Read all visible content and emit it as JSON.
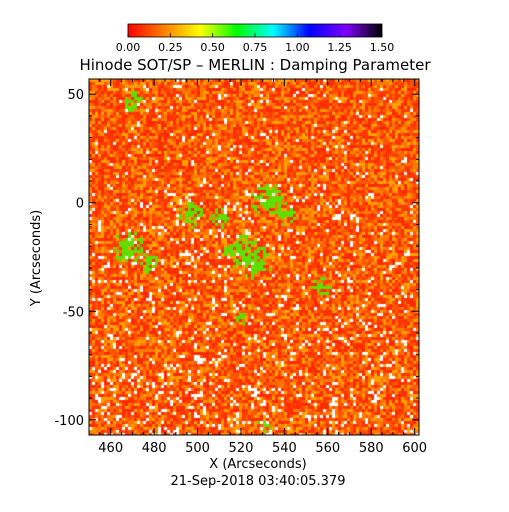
{
  "chart_data": {
    "type": "heatmap",
    "title": "Hinode SOT/SP – MERLIN : Damping Parameter",
    "xlabel": "X (Arcseconds)",
    "ylabel": "Y (Arcseconds)",
    "subtitle": "21-Sep-2018 03:40:05.379",
    "xlim": [
      450,
      602
    ],
    "ylim": [
      -107,
      57
    ],
    "x_ticks": [
      460,
      480,
      500,
      520,
      540,
      560,
      580,
      600
    ],
    "y_ticks": [
      -100,
      -50,
      0,
      50
    ],
    "colorbar": {
      "range": [
        0.0,
        1.5
      ],
      "ticks": [
        "0.00",
        "0.25",
        "0.50",
        "0.75",
        "1.00",
        "1.25",
        "1.50"
      ],
      "colors": [
        "#ff0000",
        "#ff8000",
        "#ffff00",
        "#00ff00",
        "#00ffff",
        "#0000ff",
        "#8000ff",
        "#000000"
      ]
    },
    "field": {
      "base_colors": [
        "#ff2a00",
        "#ff5500",
        "#ff7a00",
        "#ffa000",
        "#ff3800"
      ],
      "low_color": "#ffffff",
      "high_color": "#5de000",
      "high_regions": [
        {
          "x": 470,
          "y": 47,
          "r": 3
        },
        {
          "x": 468,
          "y": -20,
          "r": 5
        },
        {
          "x": 478,
          "y": -28,
          "r": 3
        },
        {
          "x": 496,
          "y": -5,
          "r": 4
        },
        {
          "x": 510,
          "y": -6,
          "r": 3
        },
        {
          "x": 520,
          "y": -22,
          "r": 5
        },
        {
          "x": 526,
          "y": -27,
          "r": 5
        },
        {
          "x": 532,
          "y": 2,
          "r": 5
        },
        {
          "x": 540,
          "y": -5,
          "r": 3
        },
        {
          "x": 556,
          "y": -38,
          "r": 3
        },
        {
          "x": 520,
          "y": -53,
          "r": 2
        },
        {
          "x": 530,
          "y": -102,
          "r": 2
        }
      ]
    }
  }
}
